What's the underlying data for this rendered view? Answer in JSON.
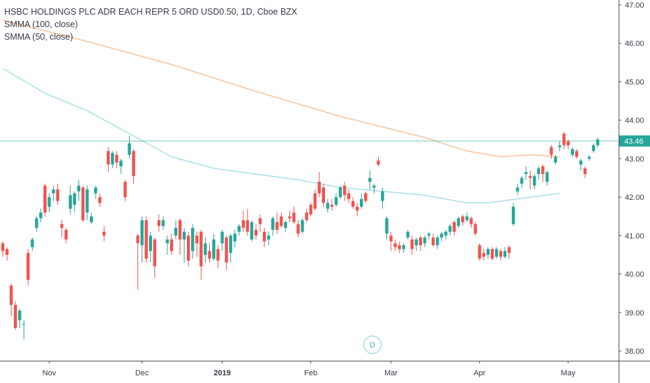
{
  "legend": {
    "symbol": "HSBC HOLDINGS PLC ADR EACH REPR 5 ORD USD0.50, 1D, Cboe BZX",
    "smma100": "SMMA (100, close)",
    "smma50": "SMMA (50, close)"
  },
  "last_price": "43.46",
  "event_marker": "D",
  "colors": {
    "up": "#26a69a",
    "down": "#ef5350",
    "smma100": "#f9c29a",
    "smma50": "#a8dfe8",
    "price_line": "#26a69a"
  },
  "chart_data": {
    "type": "candlestick",
    "ylim": [
      37.8,
      47.1
    ],
    "y_ticks": [
      "38.00",
      "39.00",
      "40.00",
      "41.00",
      "42.00",
      "43.00",
      "44.00",
      "45.00",
      "46.00",
      "47.00"
    ],
    "x_ticks": [
      {
        "label": "Nov",
        "bold": false,
        "index": 11
      },
      {
        "label": "Dec",
        "bold": false,
        "index": 33
      },
      {
        "label": "2019",
        "bold": true,
        "index": 52
      },
      {
        "label": "Feb",
        "bold": false,
        "index": 73
      },
      {
        "label": "Mar",
        "bold": false,
        "index": 92
      },
      {
        "label": "Apr",
        "bold": false,
        "index": 113
      },
      {
        "label": "May",
        "bold": false,
        "index": 134
      }
    ],
    "candles": [
      [
        40.8,
        40.6,
        40.85,
        40.45
      ],
      [
        40.65,
        40.5,
        40.7,
        40.35
      ],
      [
        39.7,
        39.2,
        39.75,
        38.9
      ],
      [
        39.2,
        38.6,
        39.3,
        38.55
      ],
      [
        38.8,
        39.05,
        39.1,
        38.6
      ],
      [
        38.7,
        38.7,
        38.8,
        38.3
      ],
      [
        40.55,
        39.85,
        40.65,
        39.7
      ],
      [
        40.7,
        40.9,
        40.95,
        40.6
      ],
      [
        41.2,
        41.45,
        41.5,
        41.1
      ],
      [
        41.45,
        41.6,
        41.7,
        41.35
      ],
      [
        42.3,
        41.6,
        42.35,
        41.5
      ],
      [
        41.75,
        42.0,
        42.1,
        41.6
      ],
      [
        42.1,
        42.2,
        42.3,
        41.9
      ],
      [
        42.2,
        41.9,
        42.35,
        41.8
      ],
      [
        41.3,
        41.2,
        41.4,
        40.95
      ],
      [
        41.15,
        40.9,
        41.2,
        40.8
      ],
      [
        41.7,
        42.05,
        42.3,
        41.55
      ],
      [
        41.8,
        42.1,
        42.15,
        41.6
      ],
      [
        42.15,
        42.3,
        42.45,
        41.9
      ],
      [
        42.25,
        41.4,
        42.3,
        41.35
      ],
      [
        41.6,
        42.2,
        42.3,
        41.4
      ],
      [
        41.35,
        41.5,
        41.6,
        41.3
      ],
      [
        42.1,
        42.25,
        42.3,
        41.95
      ],
      [
        42.0,
        41.85,
        42.1,
        41.75
      ],
      [
        41.1,
        41.0,
        41.25,
        40.85
      ],
      [
        43.2,
        42.85,
        43.3,
        42.65
      ],
      [
        42.85,
        43.15,
        43.2,
        42.75
      ],
      [
        43.1,
        42.9,
        43.2,
        42.75
      ],
      [
        42.8,
        42.95,
        43.0,
        42.6
      ],
      [
        42.4,
        42.0,
        42.45,
        41.9
      ],
      [
        43.1,
        43.4,
        43.6,
        43.0
      ],
      [
        43.2,
        42.55,
        43.25,
        42.35
      ],
      [
        41.0,
        40.8,
        41.05,
        39.6
      ],
      [
        40.75,
        41.4,
        41.5,
        40.3
      ],
      [
        41.4,
        40.4,
        41.5,
        40.3
      ],
      [
        40.6,
        41.0,
        41.1,
        40.3
      ],
      [
        40.9,
        40.2,
        40.95,
        39.9
      ],
      [
        41.4,
        41.25,
        41.55,
        41.1
      ],
      [
        41.25,
        41.4,
        41.5,
        41.15
      ],
      [
        40.8,
        40.9,
        41.0,
        40.5
      ],
      [
        40.9,
        40.6,
        41.05,
        40.5
      ],
      [
        41.0,
        41.2,
        41.4,
        40.9
      ],
      [
        41.4,
        40.9,
        41.45,
        40.5
      ],
      [
        40.9,
        41.1,
        41.2,
        40.3
      ],
      [
        41.0,
        40.35,
        41.1,
        40.2
      ],
      [
        40.6,
        41.2,
        41.3,
        40.4
      ],
      [
        41.0,
        40.8,
        41.1,
        40.45
      ],
      [
        41.1,
        40.2,
        41.15,
        39.85
      ],
      [
        40.5,
        40.8,
        40.95,
        40.3
      ],
      [
        40.6,
        40.4,
        40.8,
        40.3
      ],
      [
        40.4,
        40.9,
        41.05,
        40.35
      ],
      [
        40.65,
        40.35,
        40.75,
        40.15
      ],
      [
        40.8,
        41.1,
        41.15,
        40.6
      ],
      [
        40.95,
        40.3,
        41.0,
        40.1
      ],
      [
        40.55,
        41.0,
        41.05,
        40.3
      ],
      [
        40.85,
        41.05,
        41.15,
        40.7
      ],
      [
        41.1,
        41.25,
        41.3,
        41.0
      ],
      [
        41.4,
        41.2,
        41.65,
        41.1
      ],
      [
        41.4,
        41.1,
        41.7,
        41.0
      ],
      [
        40.9,
        41.35,
        41.4,
        40.85
      ],
      [
        41.15,
        41.0,
        41.3,
        40.9
      ],
      [
        41.45,
        41.3,
        41.55,
        41.1
      ],
      [
        41.1,
        40.85,
        41.2,
        40.7
      ],
      [
        40.9,
        41.0,
        41.1,
        40.75
      ],
      [
        41.15,
        41.45,
        41.5,
        41.0
      ],
      [
        41.35,
        41.15,
        41.6,
        41.05
      ],
      [
        41.5,
        41.25,
        41.6,
        41.2
      ],
      [
        41.2,
        41.35,
        41.4,
        41.1
      ],
      [
        41.5,
        41.45,
        41.65,
        41.35
      ],
      [
        41.6,
        41.35,
        41.75,
        41.3
      ],
      [
        41.3,
        41.05,
        41.4,
        40.95
      ],
      [
        41.1,
        41.4,
        41.45,
        41.05
      ],
      [
        41.6,
        41.4,
        41.7,
        41.35
      ],
      [
        41.8,
        41.55,
        41.85,
        41.5
      ],
      [
        42.1,
        41.7,
        42.2,
        41.65
      ],
      [
        42.4,
        42.1,
        42.65,
        42.0
      ],
      [
        42.25,
        41.85,
        42.35,
        41.75
      ],
      [
        41.7,
        41.85,
        41.95,
        41.6
      ],
      [
        41.8,
        41.75,
        41.95,
        41.65
      ],
      [
        41.8,
        42.0,
        42.1,
        41.75
      ],
      [
        42.0,
        42.25,
        42.3,
        41.95
      ],
      [
        42.3,
        42.05,
        42.4,
        41.9
      ],
      [
        42.1,
        41.95,
        42.2,
        41.85
      ],
      [
        41.9,
        41.75,
        42.0,
        41.7
      ],
      [
        41.75,
        41.65,
        41.85,
        41.5
      ],
      [
        41.75,
        41.95,
        42.1,
        41.7
      ],
      [
        42.1,
        41.9,
        42.15,
        41.85
      ],
      [
        42.4,
        42.5,
        42.7,
        42.2
      ],
      [
        42.25,
        42.3,
        42.35,
        42.1
      ],
      [
        42.95,
        42.85,
        43.05,
        42.8
      ],
      [
        41.9,
        42.15,
        42.25,
        41.7
      ],
      [
        41.05,
        41.45,
        41.5,
        40.9
      ],
      [
        41.0,
        40.85,
        41.1,
        40.6
      ],
      [
        40.8,
        40.7,
        40.9,
        40.6
      ],
      [
        40.75,
        40.65,
        40.85,
        40.55
      ],
      [
        40.65,
        40.75,
        40.8,
        40.55
      ],
      [
        40.95,
        41.1,
        41.15,
        40.9
      ],
      [
        40.9,
        40.65,
        41.0,
        40.5
      ],
      [
        40.75,
        40.9,
        40.95,
        40.6
      ],
      [
        40.95,
        40.75,
        41.0,
        40.6
      ],
      [
        40.8,
        40.95,
        41.0,
        40.7
      ],
      [
        41.0,
        41.05,
        41.1,
        40.9
      ],
      [
        40.95,
        40.75,
        41.05,
        40.7
      ],
      [
        40.75,
        40.95,
        41.0,
        40.65
      ],
      [
        40.95,
        41.05,
        41.1,
        40.85
      ],
      [
        41.0,
        41.1,
        41.15,
        40.9
      ],
      [
        41.1,
        41.25,
        41.3,
        41.0
      ],
      [
        41.35,
        41.1,
        41.4,
        41.0
      ],
      [
        41.25,
        41.45,
        41.5,
        41.2
      ],
      [
        41.5,
        41.35,
        41.55,
        41.25
      ],
      [
        41.4,
        41.5,
        41.6,
        41.35
      ],
      [
        41.45,
        41.3,
        41.5,
        41.2
      ],
      [
        41.3,
        41.05,
        41.35,
        41.0
      ],
      [
        40.75,
        40.4,
        40.8,
        40.35
      ],
      [
        40.55,
        40.45,
        40.65,
        40.35
      ],
      [
        40.5,
        40.65,
        40.7,
        40.4
      ],
      [
        40.65,
        40.4,
        40.7,
        40.35
      ],
      [
        40.45,
        40.65,
        40.7,
        40.4
      ],
      [
        40.6,
        40.45,
        40.65,
        40.35
      ],
      [
        40.45,
        40.6,
        40.7,
        40.4
      ],
      [
        40.7,
        40.55,
        40.75,
        40.4
      ],
      [
        41.3,
        41.75,
        41.85,
        41.25
      ],
      [
        42.15,
        42.25,
        42.35,
        42.05
      ],
      [
        42.35,
        42.5,
        42.55,
        42.25
      ],
      [
        42.6,
        42.65,
        42.8,
        42.45
      ],
      [
        42.55,
        42.5,
        42.7,
        42.2
      ],
      [
        42.3,
        42.55,
        42.6,
        42.2
      ],
      [
        42.6,
        42.75,
        42.8,
        42.45
      ],
      [
        42.8,
        42.6,
        42.85,
        42.4
      ],
      [
        42.4,
        42.65,
        42.7,
        42.3
      ],
      [
        43.3,
        43.1,
        43.35,
        43.0
      ],
      [
        42.9,
        43.05,
        43.1,
        42.85
      ],
      [
        43.3,
        43.35,
        43.45,
        43.2
      ],
      [
        43.65,
        43.35,
        43.7,
        43.25
      ],
      [
        43.45,
        43.35,
        43.5,
        43.25
      ],
      [
        43.1,
        43.25,
        43.3,
        43.05
      ],
      [
        43.2,
        43.05,
        43.25,
        43.0
      ],
      [
        42.85,
        42.95,
        43.0,
        42.7
      ],
      [
        42.75,
        42.6,
        42.8,
        42.5
      ],
      [
        43.0,
        43.05,
        43.1,
        42.95
      ],
      [
        43.2,
        43.35,
        43.4,
        43.15
      ],
      [
        43.35,
        43.5,
        43.55,
        43.3
      ]
    ],
    "smma100": [
      [
        0,
        46.6
      ],
      [
        20,
        46.05
      ],
      [
        40,
        45.45
      ],
      [
        60,
        44.75
      ],
      [
        80,
        44.1
      ],
      [
        100,
        43.55
      ],
      [
        110,
        43.2
      ],
      [
        118,
        43.05
      ],
      [
        125,
        43.1
      ],
      [
        132,
        43.05
      ]
    ],
    "smma50": [
      [
        0,
        45.35
      ],
      [
        10,
        44.7
      ],
      [
        20,
        44.25
      ],
      [
        30,
        43.65
      ],
      [
        40,
        43.05
      ],
      [
        50,
        42.75
      ],
      [
        60,
        42.6
      ],
      [
        70,
        42.45
      ],
      [
        80,
        42.25
      ],
      [
        90,
        42.15
      ],
      [
        100,
        42.05
      ],
      [
        110,
        41.85
      ],
      [
        115,
        41.85
      ],
      [
        125,
        42.0
      ],
      [
        132,
        42.1
      ]
    ]
  }
}
